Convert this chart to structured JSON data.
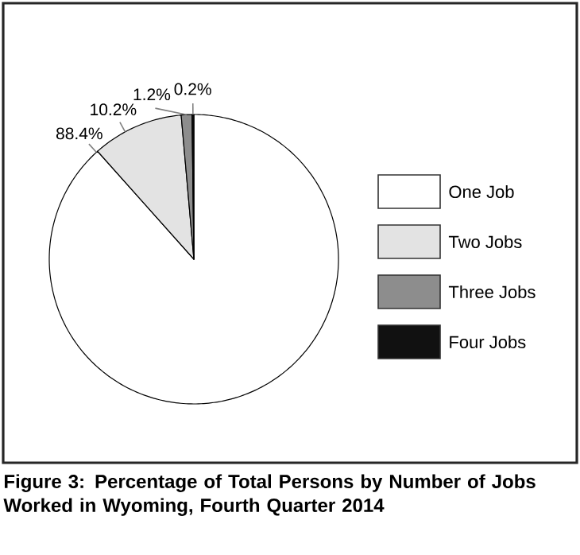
{
  "chart_data": {
    "type": "pie",
    "title": "Figure 3: Percentage of Total Persons by Number of Jobs Worked in Wyoming, Fourth Quarter 2014",
    "categories": [
      "One Job",
      "Two Jobs",
      "Three Jobs",
      "Four Jobs"
    ],
    "values": [
      88.4,
      10.2,
      1.2,
      0.2
    ],
    "value_labels": [
      "88.4%",
      "10.2%",
      "1.2%",
      "0.2%"
    ],
    "colors": [
      "#ffffff",
      "#e3e3e3",
      "#8d8d8d",
      "#111111"
    ],
    "legend": "right"
  }
}
